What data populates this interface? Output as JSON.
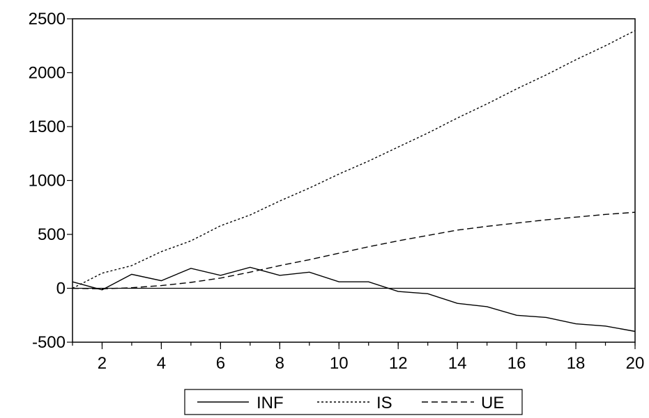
{
  "chart_data": {
    "type": "line",
    "x": [
      1,
      2,
      3,
      4,
      5,
      6,
      7,
      8,
      9,
      10,
      11,
      12,
      13,
      14,
      15,
      16,
      17,
      18,
      19,
      20
    ],
    "xlim": [
      1,
      20
    ],
    "ylim": [
      -500,
      2500
    ],
    "x_ticks": [
      2,
      4,
      6,
      8,
      10,
      12,
      14,
      16,
      18,
      20
    ],
    "y_ticks": [
      -500,
      0,
      500,
      1000,
      1500,
      2000,
      2500
    ],
    "zero_line": true,
    "grid": false,
    "legend_position": "bottom-center",
    "series": [
      {
        "name": "INF",
        "style": "solid",
        "color": "#000000",
        "values": [
          60,
          -15,
          130,
          70,
          185,
          120,
          195,
          120,
          150,
          60,
          60,
          -30,
          -50,
          -140,
          -170,
          -250,
          -270,
          -330,
          -350,
          -400
        ]
      },
      {
        "name": "IS",
        "style": "dotted",
        "color": "#000000",
        "values": [
          0,
          140,
          210,
          340,
          440,
          580,
          680,
          810,
          930,
          1060,
          1180,
          1310,
          1440,
          1580,
          1710,
          1850,
          1980,
          2120,
          2250,
          2390
        ]
      },
      {
        "name": "UE",
        "style": "dashed",
        "color": "#000000",
        "values": [
          0,
          -5,
          5,
          25,
          55,
          95,
          150,
          210,
          265,
          325,
          385,
          440,
          490,
          540,
          575,
          605,
          635,
          660,
          685,
          705
        ]
      }
    ]
  }
}
